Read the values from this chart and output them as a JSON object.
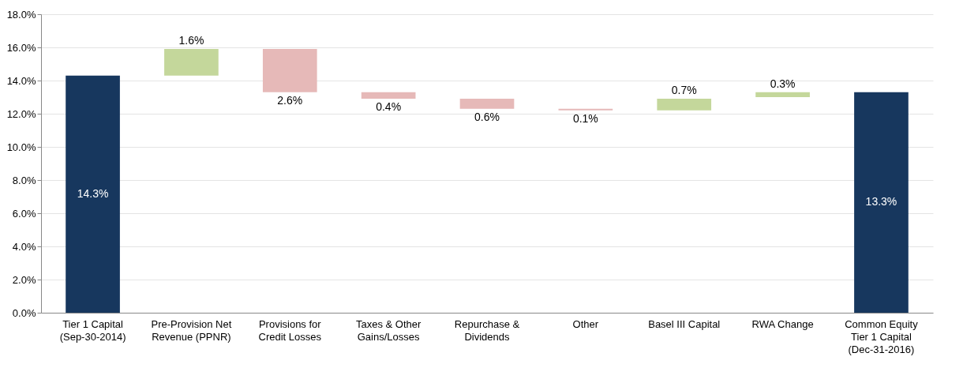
{
  "chart_data": {
    "type": "bar",
    "categories": [
      "Tier 1 Capital\n(Sep-30-2014)",
      "Pre-Provision Net\nRevenue (PPNR)",
      "Provisions for\nCredit Losses",
      "Taxes & Other\nGains/Losses",
      "Repurchase &\nDividends",
      "Other",
      "Basel III Capital",
      "RWA Change",
      "Common Equity\nTier 1 Capital\n(Dec-31-2016)"
    ],
    "values": [
      14.3,
      1.6,
      -2.6,
      -0.4,
      -0.6,
      -0.1,
      0.7,
      0.3,
      13.3
    ],
    "base": [
      0,
      14.3,
      15.9,
      13.3,
      12.9,
      12.3,
      12.2,
      13.0,
      0
    ],
    "colors": [
      "#17375e",
      "#c4d79b",
      "#e6b9b8",
      "#e6b9b8",
      "#e6b9b8",
      "#e6b9b8",
      "#c4d79b",
      "#c4d79b",
      "#17375e"
    ],
    "value_labels": [
      "14.3%",
      "1.6%",
      "2.6%",
      "0.4%",
      "0.6%",
      "0.1%",
      "0.7%",
      "0.3%",
      "13.3%"
    ],
    "ylim": [
      0,
      18
    ],
    "yticks": [
      {
        "value": 0,
        "label": "0.0%"
      },
      {
        "value": 2,
        "label": "2.0%"
      },
      {
        "value": 4,
        "label": "4.0%"
      },
      {
        "value": 6,
        "label": "6.0%"
      },
      {
        "value": 8,
        "label": "8.0%"
      },
      {
        "value": 10,
        "label": "10.0%"
      },
      {
        "value": 12,
        "label": "12.0%"
      },
      {
        "value": 14,
        "label": "14.0%"
      },
      {
        "value": 16,
        "label": "16.0%"
      },
      {
        "value": 18,
        "label": "18.0%"
      }
    ],
    "grid": true
  }
}
